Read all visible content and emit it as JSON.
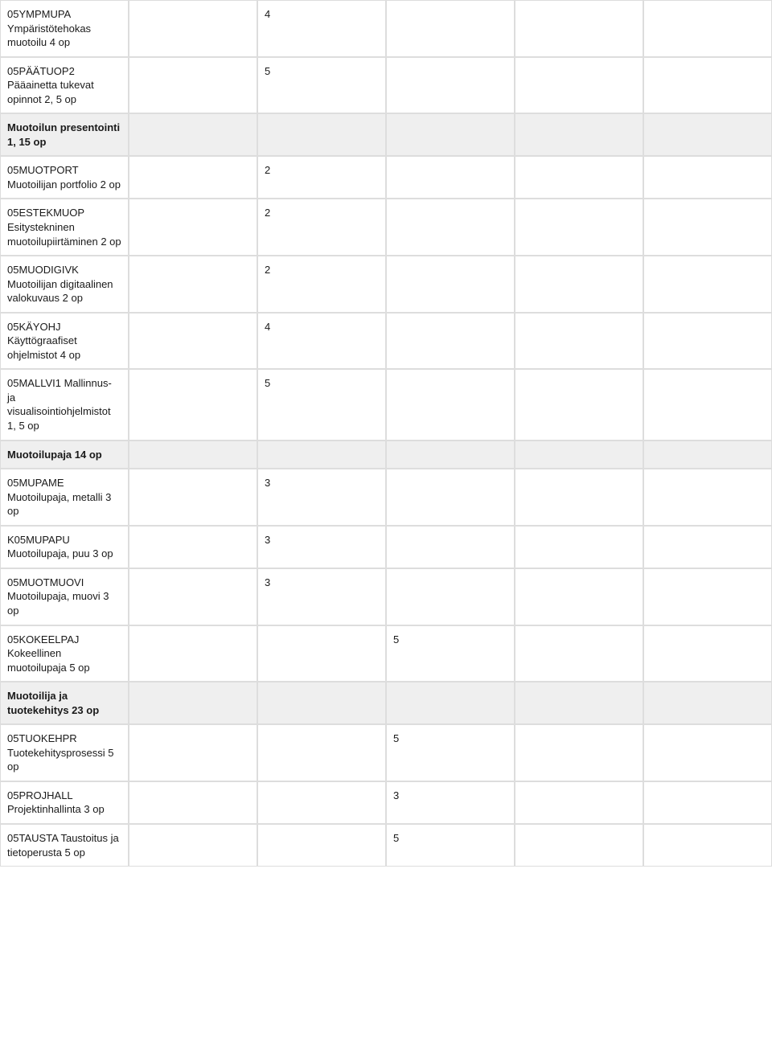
{
  "columns": [
    "label",
    "c2",
    "c3",
    "c4",
    "c5",
    "c6"
  ],
  "column_widths_pct": [
    16.7,
    16.7,
    16.7,
    16.7,
    16.7,
    16.7
  ],
  "colors": {
    "border": "#dddddd",
    "header_bg": "#efefef",
    "row_bg": "#ffffff",
    "text": "#1a1a1a"
  },
  "rows": [
    {
      "type": "row",
      "label": "05YMPMUPA Ympäristötehokas muotoilu 4 op",
      "c2": "",
      "c3": "4",
      "c4": "",
      "c5": "",
      "c6": ""
    },
    {
      "type": "row",
      "label": "05PÄÄTUOP2 Pääainetta tukevat opinnot 2, 5 op",
      "c2": "",
      "c3": "5",
      "c4": "",
      "c5": "",
      "c6": ""
    },
    {
      "type": "header",
      "label": "Muotoilun presentointi 1, 15 op",
      "c2": "",
      "c3": "",
      "c4": "",
      "c5": "",
      "c6": ""
    },
    {
      "type": "row",
      "label": "05MUOTPORT Muotoilijan portfolio 2 op",
      "c2": "",
      "c3": "2",
      "c4": "",
      "c5": "",
      "c6": ""
    },
    {
      "type": "row",
      "label": "05ESTEKMUOP Esitystekninen muotoilupiirtäminen 2 op",
      "c2": "",
      "c3": "2",
      "c4": "",
      "c5": "",
      "c6": ""
    },
    {
      "type": "row",
      "label": "05MUODIGIVK Muotoilijan digitaalinen valokuvaus 2 op",
      "c2": "",
      "c3": "2",
      "c4": "",
      "c5": "",
      "c6": ""
    },
    {
      "type": "row",
      "label": "05KÄYOHJ Käyttögraafiset ohjelmistot 4 op",
      "c2": "",
      "c3": "4",
      "c4": "",
      "c5": "",
      "c6": ""
    },
    {
      "type": "row",
      "label": "05MALLVI1 Mallinnus- ja visualisointiohjelmistot 1, 5 op",
      "c2": "",
      "c3": "5",
      "c4": "",
      "c5": "",
      "c6": ""
    },
    {
      "type": "header",
      "label": "Muotoilupaja 14 op",
      "c2": "",
      "c3": "",
      "c4": "",
      "c5": "",
      "c6": ""
    },
    {
      "type": "row",
      "label": "05MUPAME Muotoilupaja, metalli 3 op",
      "c2": "",
      "c3": "3",
      "c4": "",
      "c5": "",
      "c6": ""
    },
    {
      "type": "row",
      "label": "K05MUPAPU Muotoilupaja, puu 3 op",
      "c2": "",
      "c3": "3",
      "c4": "",
      "c5": "",
      "c6": ""
    },
    {
      "type": "row",
      "label": "05MUOTMUOVI Muotoilupaja, muovi 3 op",
      "c2": "",
      "c3": "3",
      "c4": "",
      "c5": "",
      "c6": ""
    },
    {
      "type": "row",
      "label": "05KOKEELPAJ Kokeellinen muotoilupaja 5 op",
      "c2": "",
      "c3": "",
      "c4": "5",
      "c5": "",
      "c6": ""
    },
    {
      "type": "header",
      "label": "Muotoilija ja tuotekehitys 23 op",
      "c2": "",
      "c3": "",
      "c4": "",
      "c5": "",
      "c6": ""
    },
    {
      "type": "row",
      "label": "05TUOKEHPR Tuotekehitysprosessi 5 op",
      "c2": "",
      "c3": "",
      "c4": "5",
      "c5": "",
      "c6": ""
    },
    {
      "type": "row",
      "label": "05PROJHALL Projektinhallinta 3 op",
      "c2": "",
      "c3": "",
      "c4": "3",
      "c5": "",
      "c6": ""
    },
    {
      "type": "row",
      "label": "05TAUSTA Taustoitus ja tietoperusta 5 op",
      "c2": "",
      "c3": "",
      "c4": "5",
      "c5": "",
      "c6": ""
    }
  ]
}
